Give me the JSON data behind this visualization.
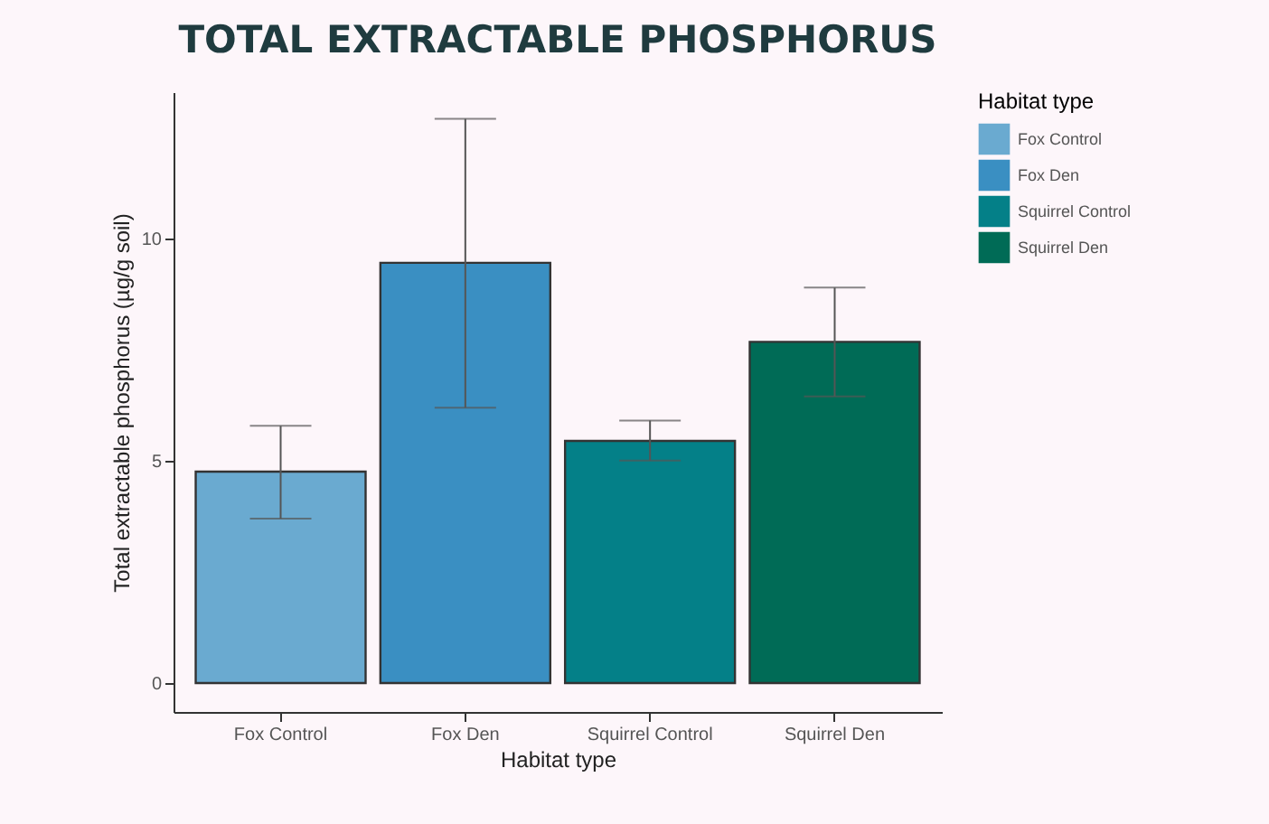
{
  "chart_data": {
    "type": "bar",
    "title": "TOTAL EXTRACTABLE PHOSPHORUS",
    "xlabel": "Habitat type",
    "ylabel": "Total extractable phosphorus (µg/g soil)",
    "legend_title": "Habitat type",
    "categories": [
      "Fox Control",
      "Fox Den",
      "Squirrel Control",
      "Squirrel Den"
    ],
    "series": [
      {
        "name": "Fox Control",
        "color": "#6aaad0",
        "values": [
          4.76,
          null,
          null,
          null
        ],
        "errors": [
          [
            3.7,
            5.79
          ],
          null,
          null,
          null
        ]
      },
      {
        "name": "Fox Den",
        "color": "#3a8fc2",
        "values": [
          null,
          9.46,
          null,
          null
        ],
        "errors": [
          null,
          [
            6.2,
            12.7
          ],
          null,
          null
        ]
      },
      {
        "name": "Squirrel Control",
        "color": "#048088",
        "values": [
          null,
          null,
          5.45,
          null
        ],
        "errors": [
          null,
          null,
          [
            5.01,
            5.91
          ],
          null
        ]
      },
      {
        "name": "Squirrel Den",
        "color": "#006b56",
        "values": [
          null,
          null,
          null,
          7.68
        ],
        "errors": [
          null,
          null,
          null,
          [
            6.45,
            8.9
          ]
        ]
      }
    ],
    "ylim": [
      -0.65,
      13.3
    ],
    "yticks": [
      0,
      5,
      10
    ],
    "grid": false,
    "legend": "right"
  }
}
